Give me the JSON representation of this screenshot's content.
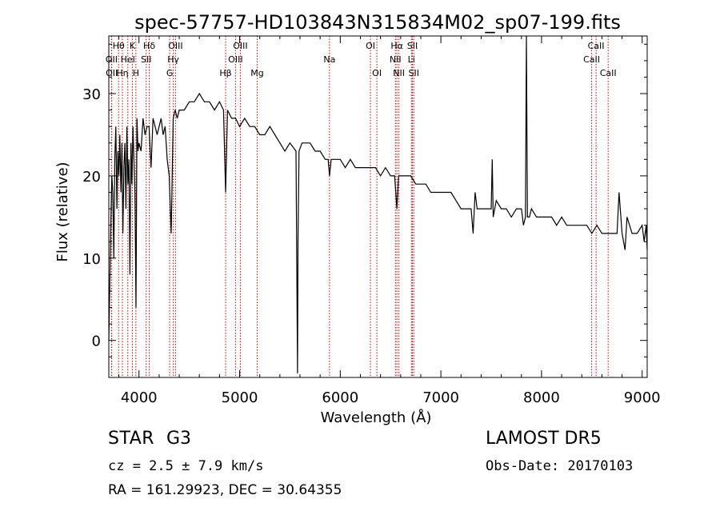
{
  "chart_data": {
    "type": "line",
    "title": "spec-57757-HD103843N315834M02_sp07-199.fits",
    "xlabel": "Wavelength (Å)",
    "ylabel": "Flux (relative)",
    "xlim": [
      3700,
      9050
    ],
    "ylim": [
      -4.5,
      37
    ],
    "x_ticks": [
      4000,
      5000,
      6000,
      7000,
      8000,
      9000
    ],
    "y_ticks": [
      0,
      10,
      20,
      30
    ],
    "grid": false,
    "line_color": "#000000",
    "marker_color": "#c00000",
    "series": [
      {
        "x": [
          3700,
          3710,
          3720,
          3730,
          3740,
          3750,
          3760,
          3770,
          3780,
          3790,
          3800,
          3810,
          3820,
          3830,
          3840,
          3850,
          3860,
          3870,
          3880,
          3890,
          3900,
          3910,
          3920,
          3930,
          3940,
          3950,
          3960,
          3970,
          3980,
          3990,
          4000,
          4020,
          4040,
          4060,
          4080,
          4100,
          4120,
          4140,
          4160,
          4180,
          4200,
          4220,
          4240,
          4260,
          4280,
          4300,
          4320,
          4340,
          4360,
          4380,
          4400,
          4450,
          4500,
          4550,
          4600,
          4650,
          4700,
          4750,
          4800,
          4840,
          4861,
          4880,
          4920,
          4960,
          5000,
          5050,
          5100,
          5150,
          5200,
          5250,
          5300,
          5350,
          5400,
          5450,
          5500,
          5560,
          5575,
          5580,
          5590,
          5620,
          5650,
          5700,
          5750,
          5800,
          5850,
          5880,
          5893,
          5910,
          5950,
          6000,
          6050,
          6100,
          6150,
          6200,
          6250,
          6300,
          6350,
          6400,
          6450,
          6500,
          6540,
          6563,
          6580,
          6600,
          6650,
          6700,
          6750,
          6800,
          6850,
          6900,
          6950,
          7000,
          7050,
          7100,
          7150,
          7200,
          7250,
          7300,
          7320,
          7340,
          7360,
          7400,
          7450,
          7500,
          7510,
          7520,
          7550,
          7600,
          7650,
          7700,
          7750,
          7800,
          7820,
          7840,
          7850,
          7860,
          7880,
          7900,
          7950,
          8000,
          8050,
          8100,
          8150,
          8200,
          8250,
          8300,
          8350,
          8400,
          8450,
          8500,
          8550,
          8600,
          8650,
          8700,
          8750,
          8770,
          8800,
          8830,
          8850,
          8900,
          8950,
          9000,
          9020,
          9040,
          9050
        ],
        "y": [
          0,
          7,
          14,
          20,
          18,
          10,
          22,
          26,
          16,
          23,
          20,
          25,
          18,
          24,
          13,
          21,
          24,
          16,
          26,
          19,
          22,
          8,
          24,
          19,
          26,
          22,
          18,
          4,
          27,
          23,
          24,
          23,
          27,
          25,
          26,
          26,
          21,
          27,
          26,
          25,
          26,
          27,
          25,
          26,
          22,
          20,
          13,
          27,
          28,
          27,
          28,
          28,
          29,
          29,
          30,
          29,
          29,
          28,
          29,
          28,
          18,
          28,
          27,
          27,
          26,
          27,
          26,
          26,
          25,
          25,
          26,
          25,
          24,
          23,
          24,
          23,
          -4,
          12,
          23,
          24,
          24,
          24,
          23,
          23,
          22,
          22,
          20,
          22,
          22,
          22,
          21,
          22,
          21,
          21,
          21,
          21,
          21,
          20,
          21,
          20,
          20,
          16,
          20,
          20,
          20,
          20,
          19,
          19,
          19,
          18,
          18,
          18,
          18,
          18,
          17,
          16,
          16,
          16,
          13,
          18,
          16,
          16,
          16,
          16,
          22,
          15,
          17,
          16,
          16,
          15,
          16,
          16,
          14,
          15,
          37,
          15,
          15,
          16,
          15,
          15,
          15,
          15,
          14,
          15,
          14,
          14,
          14,
          14,
          14,
          13,
          14,
          13,
          13,
          13,
          13,
          18,
          13,
          11,
          15,
          13,
          13,
          14,
          12,
          14,
          11
        ]
      }
    ],
    "line_markers": [
      {
        "label": "Hθ",
        "wavelength": 3797,
        "row": 0
      },
      {
        "label": "K",
        "wavelength": 3934,
        "row": 0
      },
      {
        "label": "Hδ",
        "wavelength": 4102,
        "row": 0
      },
      {
        "label": "OIII",
        "wavelength": 4363,
        "row": 0
      },
      {
        "label": "OIII",
        "wavelength": 5007,
        "row": 0
      },
      {
        "label": "OI",
        "wavelength": 6300,
        "row": 0
      },
      {
        "label": "Hα",
        "wavelength": 6563,
        "row": 0
      },
      {
        "label": "SII",
        "wavelength": 6717,
        "row": 0
      },
      {
        "label": "CaII",
        "wavelength": 8542,
        "row": 0
      },
      {
        "label": "OII",
        "wavelength": 3727,
        "row": 1
      },
      {
        "label": "HeI",
        "wavelength": 3889,
        "row": 1
      },
      {
        "label": "SII",
        "wavelength": 4072,
        "row": 1
      },
      {
        "label": "Hγ",
        "wavelength": 4341,
        "row": 1
      },
      {
        "label": "OIII",
        "wavelength": 4959,
        "row": 1
      },
      {
        "label": "Na",
        "wavelength": 5893,
        "row": 1
      },
      {
        "label": "NII",
        "wavelength": 6548,
        "row": 1
      },
      {
        "label": "Li",
        "wavelength": 6707,
        "row": 1
      },
      {
        "label": "CaII",
        "wavelength": 8498,
        "row": 1
      },
      {
        "label": "OII",
        "wavelength": 3729,
        "row": 2
      },
      {
        "label": "Hη",
        "wavelength": 3835,
        "row": 2
      },
      {
        "label": "H",
        "wavelength": 3969,
        "row": 2
      },
      {
        "label": "G",
        "wavelength": 4305,
        "row": 2
      },
      {
        "label": "Hβ",
        "wavelength": 4861,
        "row": 2
      },
      {
        "label": "Mg",
        "wavelength": 5175,
        "row": 2
      },
      {
        "label": "OI",
        "wavelength": 6364,
        "row": 2
      },
      {
        "label": "NII",
        "wavelength": 6583,
        "row": 2
      },
      {
        "label": "SII",
        "wavelength": 6731,
        "row": 2
      },
      {
        "label": "CaII",
        "wavelength": 8662,
        "row": 2
      }
    ]
  },
  "info": {
    "obj_class": "STAR",
    "subclass": "G3",
    "survey": "LAMOST DR5",
    "cz": "cz = 2.5 ± 7.9 km/s",
    "obs_date": "Obs-Date: 20170103",
    "radec": "RA = 161.29923, DEC =  30.64355"
  }
}
